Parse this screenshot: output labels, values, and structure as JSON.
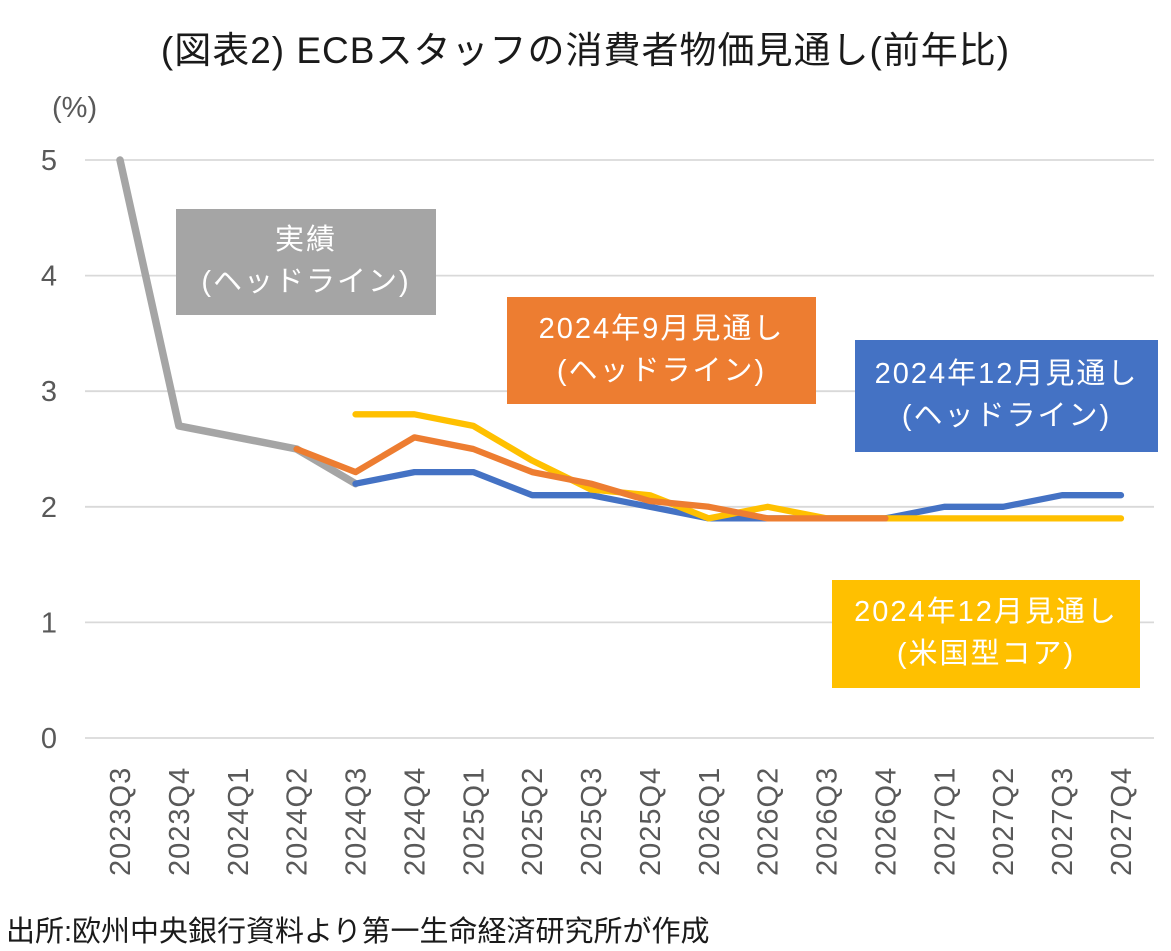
{
  "title": "(図表2) ECBスタッフの消費者物価見通し(前年比)",
  "y_axis": {
    "unit_label": "(%)",
    "ticks": [
      5,
      4,
      3,
      2,
      1,
      0
    ]
  },
  "source_note": "出所:欧州中央銀行資料より第一生命経済研究所が作成",
  "colors": {
    "gridline": "#d9d9d9",
    "axis_text": "#595959",
    "title_text": "#1a1a1a",
    "legend_text": "#ffffff"
  },
  "chart_data": {
    "type": "line",
    "title": "(図表2) ECBスタッフの消費者物価見通し(前年比)",
    "xlabel": "",
    "ylabel": "(%)",
    "ylim": [
      0,
      5
    ],
    "grid": true,
    "legend_position": "floating-boxes-on-plot",
    "categories": [
      "2023Q3",
      "2023Q4",
      "2024Q1",
      "2024Q2",
      "2024Q3",
      "2024Q4",
      "2025Q1",
      "2025Q2",
      "2025Q3",
      "2025Q4",
      "2026Q1",
      "2026Q2",
      "2026Q3",
      "2026Q4",
      "2027Q1",
      "2027Q2",
      "2027Q3",
      "2027Q4"
    ],
    "series": [
      {
        "name": "実績(ヘッドライン)",
        "label_line1": "実績",
        "label_line2": "(ヘッドライン)",
        "color": "#a5a5a5",
        "start_index": 0,
        "values": [
          5.0,
          2.7,
          2.6,
          2.5,
          2.2
        ]
      },
      {
        "name": "2024年9月見通し(ヘッドライン)",
        "label_line1": "2024年9月見通し",
        "label_line2": "(ヘッドライン)",
        "color": "#ed7d31",
        "start_index": 3,
        "values": [
          2.5,
          2.3,
          2.6,
          2.5,
          2.3,
          2.2,
          2.05,
          2.0,
          1.9,
          1.9,
          1.9
        ]
      },
      {
        "name": "2024年12月見通し(ヘッドライン)",
        "label_line1": "2024年12月見通し",
        "label_line2": "(ヘッドライン)",
        "color": "#4472c4",
        "start_index": 4,
        "values": [
          2.2,
          2.3,
          2.3,
          2.1,
          2.1,
          2.0,
          1.9,
          1.9,
          1.9,
          1.9,
          2.0,
          2.0,
          2.1,
          2.1
        ]
      },
      {
        "name": "2024年12月見通し(米国型コア)",
        "label_line1": "2024年12月見通し",
        "label_line2": "(米国型コア)",
        "color": "#ffc000",
        "start_index": 4,
        "values": [
          2.8,
          2.8,
          2.7,
          2.4,
          2.15,
          2.1,
          1.9,
          2.0,
          1.9,
          1.9,
          1.9,
          1.9,
          1.9,
          1.9
        ]
      }
    ]
  }
}
